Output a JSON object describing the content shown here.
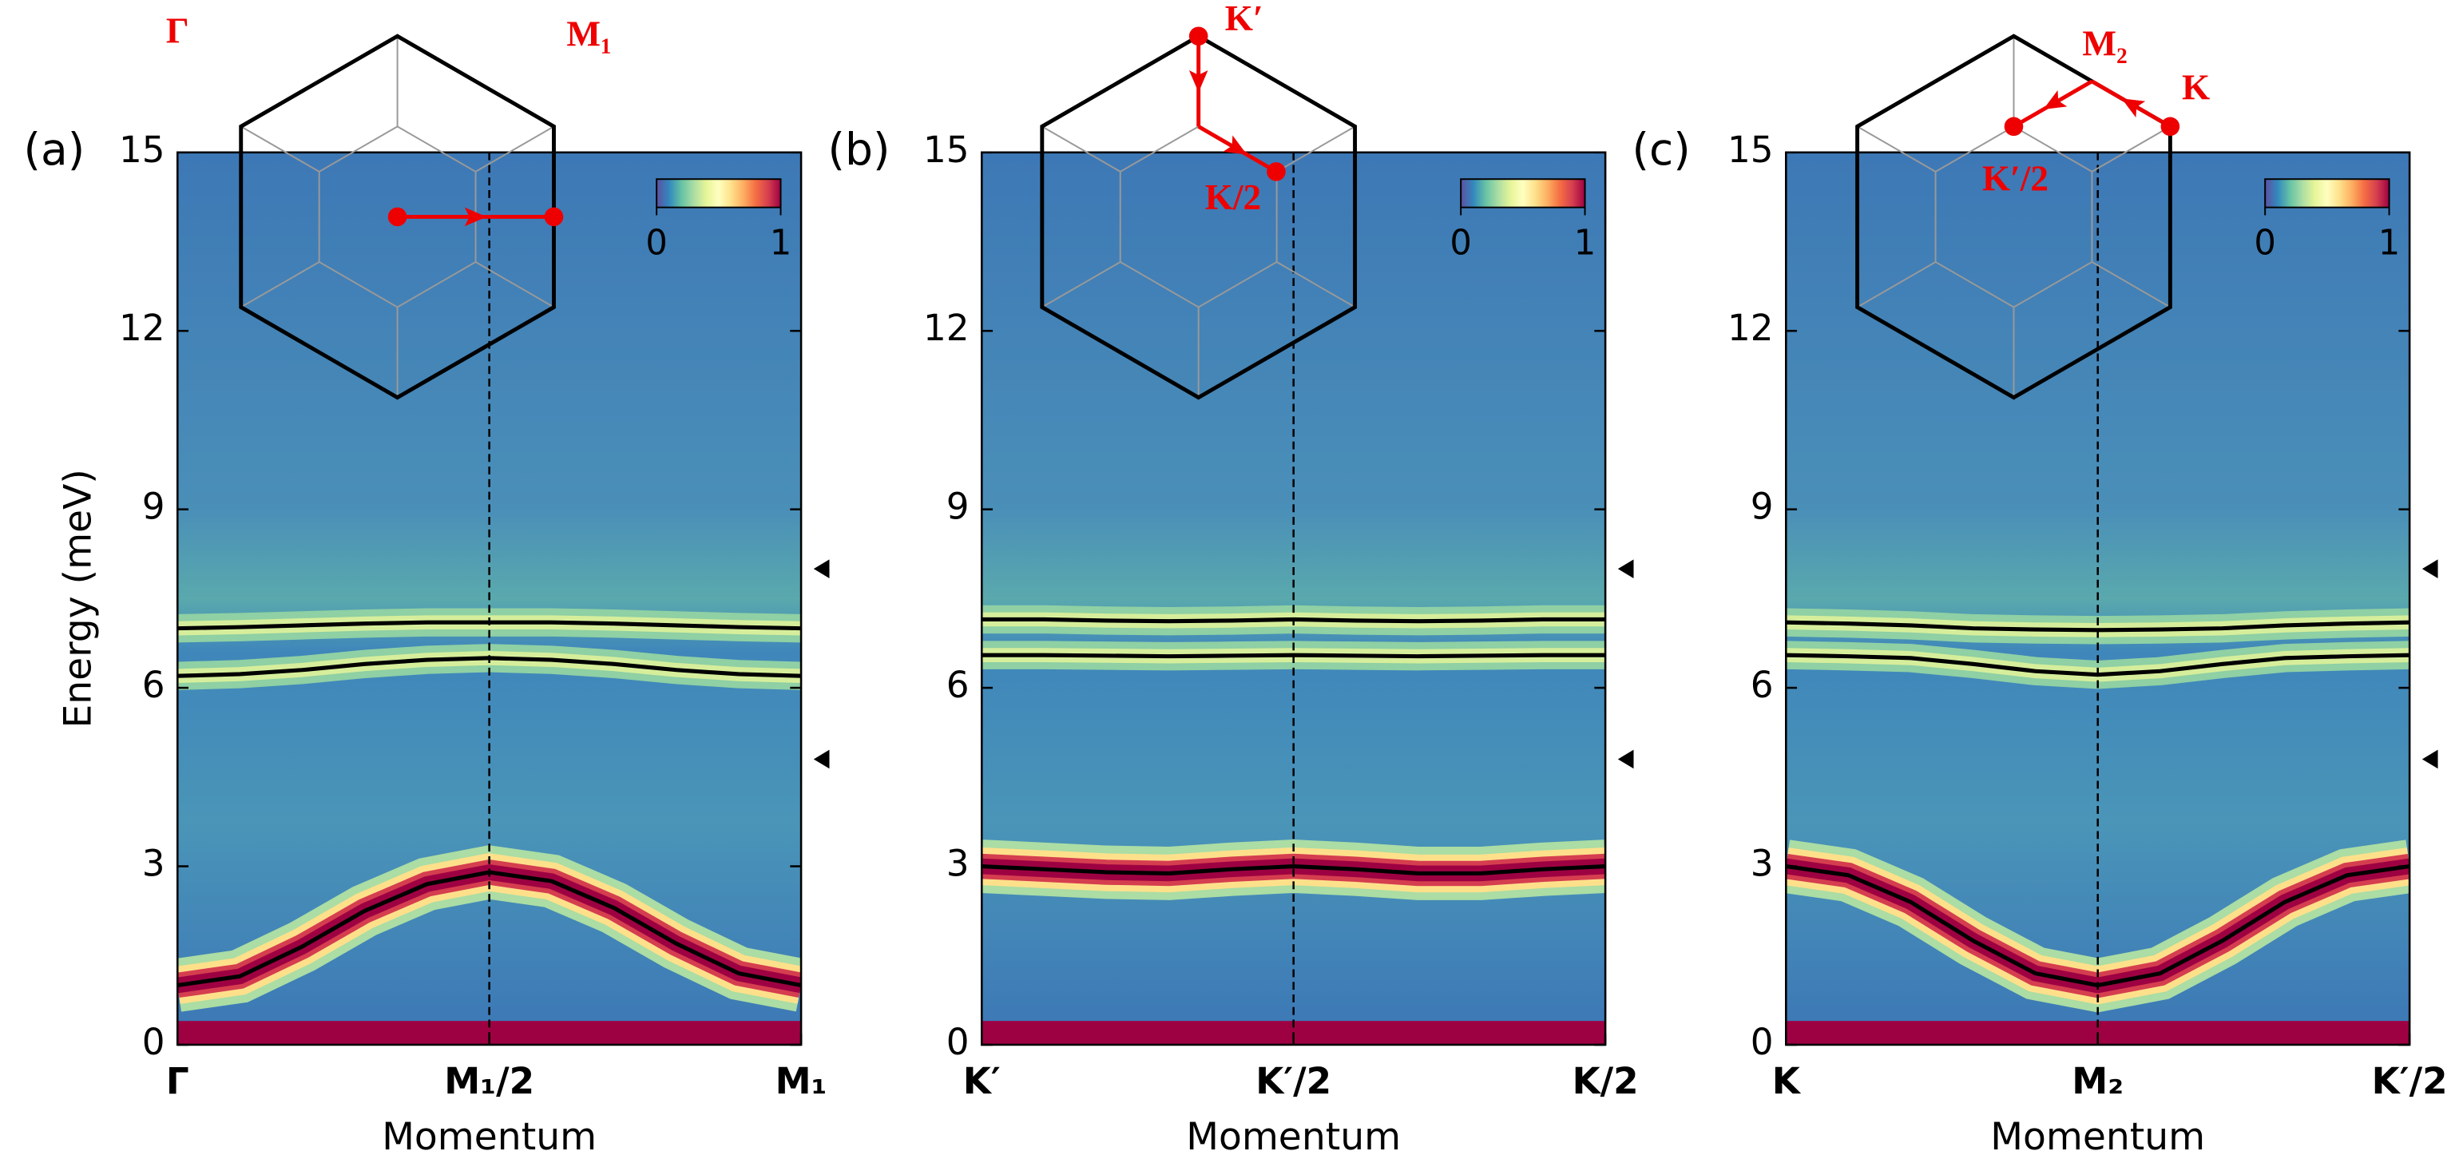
{
  "chart_data": [
    {
      "type": "line",
      "panel": "(a)",
      "xlabel": "Momentum",
      "ylabel": "Energy (meV)",
      "xlim": [
        0,
        1
      ],
      "ylim": [
        0,
        15
      ],
      "yticks": [
        0,
        3,
        6,
        9,
        12,
        15
      ],
      "xticks": [
        {
          "value": 0,
          "label": "Γ"
        },
        {
          "value": 0.5,
          "label": "M₁/2"
        },
        {
          "value": 1,
          "label": "M₁"
        }
      ],
      "vline": 0.5,
      "markers": [
        8,
        4.8
      ],
      "clim": [
        0,
        1
      ],
      "cticks": [
        0,
        1
      ],
      "inset_labels": [
        "Γ",
        "M₁"
      ],
      "x": [
        0,
        0.1,
        0.2,
        0.3,
        0.4,
        0.5,
        0.6,
        0.7,
        0.8,
        0.9,
        1
      ],
      "series": [
        {
          "color": "#000000",
          "values": [
            7.0,
            7.02,
            7.05,
            7.08,
            7.1,
            7.1,
            7.1,
            7.08,
            7.05,
            7.02,
            7.0
          ]
        },
        {
          "color": "#000000",
          "values": [
            6.2,
            6.23,
            6.3,
            6.4,
            6.47,
            6.5,
            6.47,
            6.4,
            6.3,
            6.23,
            6.2
          ]
        },
        {
          "color": "#000000",
          "values": [
            1.0,
            1.15,
            1.65,
            2.25,
            2.7,
            2.9,
            2.75,
            2.3,
            1.7,
            1.2,
            1.0
          ]
        }
      ]
    },
    {
      "type": "line",
      "panel": "(b)",
      "xlabel": "Momentum",
      "xlim": [
        0,
        1
      ],
      "ylim": [
        0,
        15
      ],
      "yticks": [
        0,
        3,
        6,
        9,
        12,
        15
      ],
      "xticks": [
        {
          "value": 0,
          "label": "K′"
        },
        {
          "value": 0.5,
          "label": "K′/2"
        },
        {
          "value": 1,
          "label": "K/2"
        }
      ],
      "vline": 0.5,
      "markers": [
        8,
        4.8
      ],
      "clim": [
        0,
        1
      ],
      "cticks": [
        0,
        1
      ],
      "inset_labels": [
        "K′",
        "K/2"
      ],
      "x": [
        0,
        0.1,
        0.2,
        0.3,
        0.4,
        0.5,
        0.6,
        0.7,
        0.8,
        0.9,
        1
      ],
      "series": [
        {
          "color": "#000000",
          "values": [
            7.15,
            7.15,
            7.13,
            7.12,
            7.13,
            7.15,
            7.13,
            7.12,
            7.13,
            7.15,
            7.15
          ]
        },
        {
          "color": "#000000",
          "values": [
            6.55,
            6.55,
            6.54,
            6.53,
            6.54,
            6.55,
            6.54,
            6.53,
            6.54,
            6.55,
            6.55
          ]
        },
        {
          "color": "#000000",
          "values": [
            3.0,
            2.95,
            2.9,
            2.88,
            2.95,
            3.0,
            2.95,
            2.88,
            2.88,
            2.95,
            3.0
          ]
        }
      ]
    },
    {
      "type": "line",
      "panel": "(c)",
      "xlabel": "Momentum",
      "xlim": [
        0,
        1
      ],
      "ylim": [
        0,
        15
      ],
      "yticks": [
        0,
        3,
        6,
        9,
        12,
        15
      ],
      "xticks": [
        {
          "value": 0,
          "label": "K"
        },
        {
          "value": 0.5,
          "label": "M₂"
        },
        {
          "value": 1,
          "label": "K′/2"
        }
      ],
      "vline": 0.5,
      "markers": [
        8,
        4.8
      ],
      "clim": [
        0,
        1
      ],
      "cticks": [
        0,
        1
      ],
      "inset_labels": [
        "M₂",
        "K",
        "K′/2"
      ],
      "x": [
        0,
        0.1,
        0.2,
        0.3,
        0.4,
        0.5,
        0.6,
        0.7,
        0.8,
        0.9,
        1
      ],
      "series": [
        {
          "color": "#000000",
          "values": [
            7.1,
            7.08,
            7.05,
            7.0,
            6.98,
            6.97,
            6.98,
            7.0,
            7.05,
            7.08,
            7.1
          ]
        },
        {
          "color": "#000000",
          "values": [
            6.55,
            6.53,
            6.5,
            6.4,
            6.28,
            6.22,
            6.28,
            6.4,
            6.5,
            6.53,
            6.55
          ]
        },
        {
          "color": "#000000",
          "values": [
            3.0,
            2.85,
            2.4,
            1.75,
            1.2,
            1.0,
            1.2,
            1.75,
            2.4,
            2.85,
            3.0
          ]
        }
      ]
    }
  ]
}
